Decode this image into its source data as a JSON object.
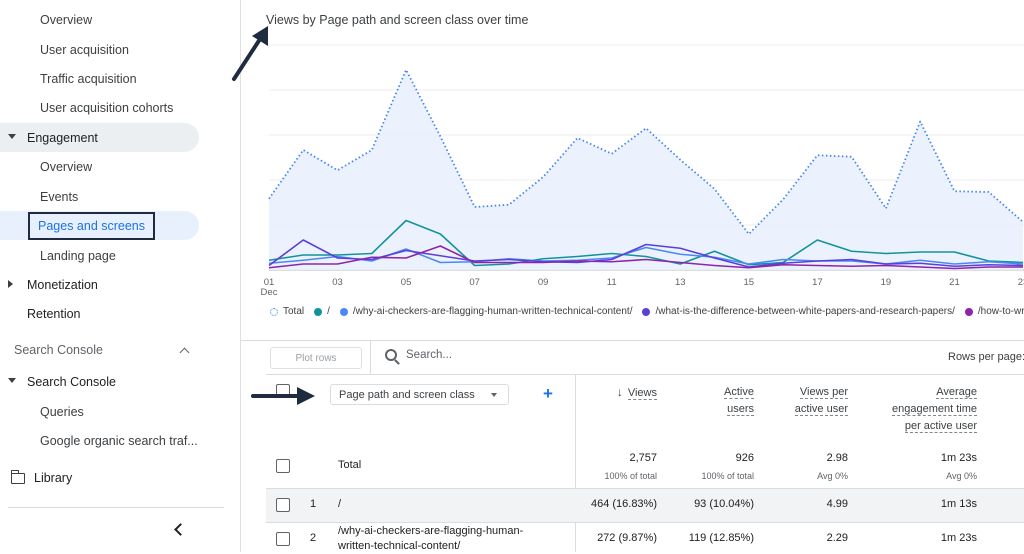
{
  "sidebar": {
    "items": [
      {
        "label": "Overview"
      },
      {
        "label": "User acquisition"
      },
      {
        "label": "Traffic acquisition"
      },
      {
        "label": "User acquisition cohorts"
      },
      {
        "label": "Engagement"
      },
      {
        "label": "Overview"
      },
      {
        "label": "Events"
      },
      {
        "label": "Pages and screens"
      },
      {
        "label": "Landing page"
      },
      {
        "label": "Monetization"
      },
      {
        "label": "Retention"
      }
    ],
    "search_console_section": "Search Console",
    "search_console_group": "Search Console",
    "search_console_items": [
      {
        "label": "Queries"
      },
      {
        "label": "Google organic search traf..."
      }
    ],
    "library": "Library"
  },
  "chart_title": "Views by Page path and screen class over time",
  "chart_data": {
    "type": "line",
    "title": "Views by Page path and screen class over time",
    "x": [
      "01 Dec",
      "02",
      "03",
      "04",
      "05",
      "06",
      "07",
      "08",
      "09",
      "10",
      "11",
      "12",
      "13",
      "14",
      "15",
      "16",
      "17",
      "18",
      "19",
      "20",
      "21",
      "22",
      "23"
    ],
    "xtick_labels": [
      "01",
      "03",
      "05",
      "07",
      "09",
      "11",
      "13",
      "15",
      "17",
      "19",
      "21",
      "23"
    ],
    "xtick_sub": "Dec",
    "series": [
      {
        "name": "Total",
        "color": "#4285f4",
        "dotted": true,
        "values": [
          95,
          160,
          133,
          160,
          267,
          178,
          84,
          87,
          124,
          176,
          155,
          189,
          147,
          108,
          48,
          94,
          153,
          151,
          82,
          198,
          105,
          104,
          64
        ]
      },
      {
        "name": "/",
        "color": "#12939a",
        "values": [
          13,
          20,
          20,
          22,
          66,
          48,
          6,
          8,
          15,
          18,
          22,
          18,
          8,
          25,
          7,
          10,
          40,
          25,
          22,
          24,
          24,
          12,
          10
        ]
      },
      {
        "name": "/why-ai-checkers-are-flagging-human-written-technical-content/",
        "color": "#4a89f3",
        "values": [
          9,
          13,
          18,
          12,
          28,
          10,
          11,
          15,
          12,
          13,
          16,
          30,
          21,
          17,
          8,
          14,
          12,
          12,
          8,
          13,
          8,
          11,
          8
        ]
      },
      {
        "name": "/what-is-the-difference-between-white-papers-and-research-papers/",
        "color": "#5b3fd6",
        "values": [
          6,
          40,
          16,
          14,
          26,
          19,
          12,
          14,
          11,
          10,
          14,
          34,
          29,
          16,
          4,
          9,
          12,
          14,
          8,
          9,
          5,
          7,
          6
        ]
      },
      {
        "name": "/how-to-write-a...",
        "color": "#8e24aa",
        "values": [
          3,
          8,
          8,
          17,
          16,
          32,
          10,
          10,
          10,
          12,
          11,
          14,
          10,
          6,
          3,
          7,
          6,
          5,
          6,
          4,
          2,
          4,
          4
        ]
      }
    ],
    "ylim": [
      0,
      300
    ],
    "grid": true
  },
  "legend": [
    {
      "label": "Total",
      "color": "#4285f4"
    },
    {
      "label": "/",
      "color": "#12939a"
    },
    {
      "label": "/why-ai-checkers-are-flagging-human-written-technical-content/",
      "color": "#4a89f3"
    },
    {
      "label": "/what-is-the-difference-between-white-papers-and-research-papers/",
      "color": "#5b3fd6"
    },
    {
      "label": "/how-to-write-a",
      "color": "#8e24aa"
    }
  ],
  "toolbar": {
    "plot_rows": "Plot rows",
    "search_placeholder": "Search...",
    "rows_per_page": "Rows per page:"
  },
  "table": {
    "dimension": "Page path and screen class",
    "columns": {
      "views": "Views",
      "active_users_1": "Active",
      "active_users_2": "users",
      "vpu_1": "Views per",
      "vpu_2": "active user",
      "aet_1": "Average",
      "aet_2": "engagement time",
      "aet_3": "per active user"
    },
    "total": {
      "label": "Total",
      "views": "2,757",
      "views_sub": "100% of total",
      "active_users": "926",
      "active_users_sub": "100% of total",
      "vpu": "2.98",
      "vpu_sub": "Avg 0%",
      "aet": "1m 23s",
      "aet_sub": "Avg 0%"
    },
    "rows": [
      {
        "index": "1",
        "path1": "/",
        "path2": "",
        "views": "464 (16.83%)",
        "active_users": "93 (10.04%)",
        "vpu": "4.99",
        "aet": "1m 13s"
      },
      {
        "index": "2",
        "path1": "/why-ai-checkers-are-flagging-human-",
        "path2": "written-technical-content/",
        "views": "272 (9.87%)",
        "active_users": "119 (12.85%)",
        "vpu": "2.29",
        "aet": "1m 23s"
      }
    ]
  }
}
